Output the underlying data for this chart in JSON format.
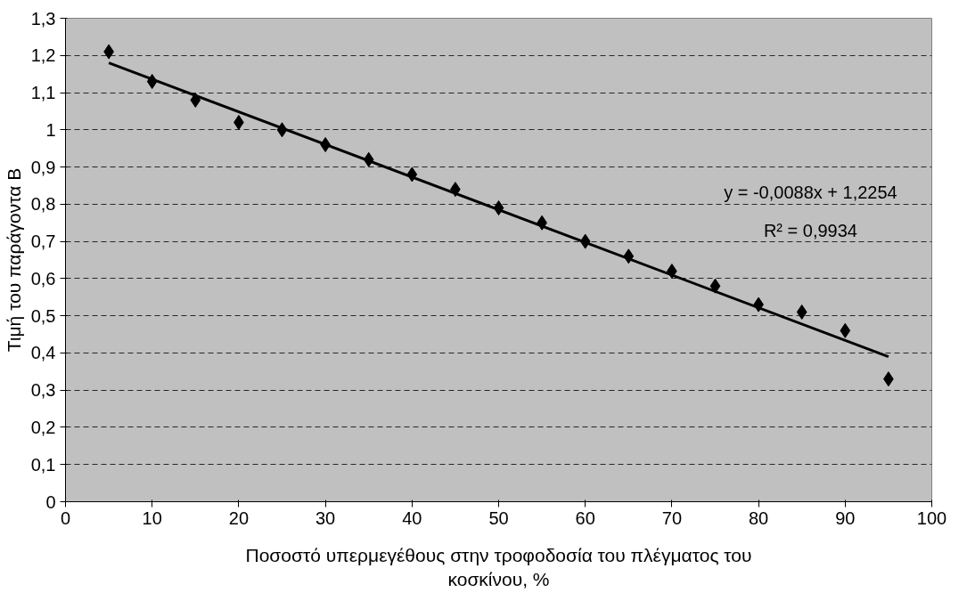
{
  "chart_data": {
    "type": "scatter",
    "xlabel": "Ποσοστό υπερμεγέθους στην τροφοδοσία του πλέγματος του\nκοσκίνου, %",
    "ylabel": "Τιμή του παράγοντα B",
    "x": [
      5,
      10,
      15,
      20,
      25,
      30,
      35,
      40,
      45,
      50,
      55,
      60,
      65,
      70,
      75,
      80,
      85,
      90,
      95
    ],
    "series": [
      {
        "color": "#000000",
        "marker": "diamond",
        "values": [
          1.21,
          1.13,
          1.08,
          1.02,
          1.0,
          0.96,
          0.92,
          0.88,
          0.84,
          0.79,
          0.75,
          0.7,
          0.66,
          0.62,
          0.58,
          0.53,
          0.51,
          0.46,
          0.33
        ]
      },
      {
        "type": "line",
        "color": "#000000",
        "line_style": "solid",
        "x": [
          5,
          95
        ],
        "values": [
          1.18,
          0.39
        ]
      }
    ],
    "annotations": [
      "y = -0,0088x + 1,2254",
      "R² = 0,9934"
    ],
    "xlim": [
      0,
      100
    ],
    "xticks": [
      0,
      10,
      20,
      30,
      40,
      50,
      60,
      70,
      80,
      90,
      100
    ],
    "ylim": [
      0,
      1.3
    ],
    "yticks": [
      0,
      {
        "value": 0.1,
        "label": "0,1"
      },
      {
        "value": 0.2,
        "label": "0,2"
      },
      {
        "value": 0.3,
        "label": "0,3"
      },
      {
        "value": 0.4,
        "label": "0,4"
      },
      {
        "value": 0.5,
        "label": "0,5"
      },
      {
        "value": 0.6,
        "label": "0,6"
      },
      {
        "value": 0.7,
        "label": "0,7"
      },
      {
        "value": 0.8,
        "label": "0,8"
      },
      {
        "value": 0.9,
        "label": "0,9"
      },
      1,
      {
        "value": 1.1,
        "label": "1,1"
      },
      {
        "value": 1.2,
        "label": "1,2"
      },
      {
        "value": 1.3,
        "label": "1,3"
      }
    ],
    "grid": "y"
  }
}
